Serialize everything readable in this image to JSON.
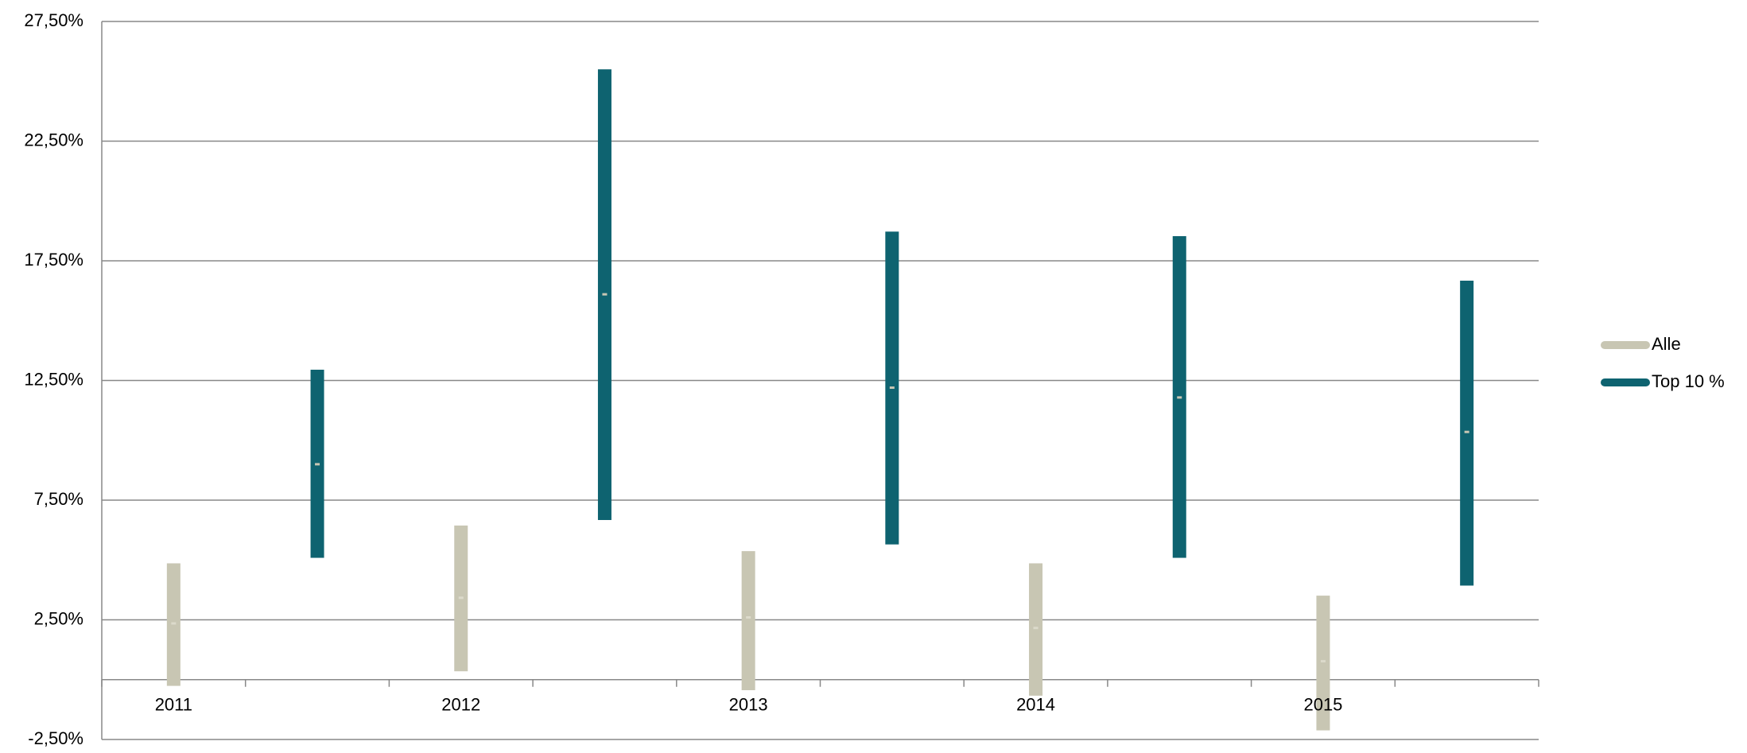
{
  "chart_data": {
    "type": "range-bar",
    "categories": [
      "2011",
      "2012",
      "2013",
      "2014",
      "2015"
    ],
    "series": [
      {
        "name": "Alle",
        "color": "#c8c6b3",
        "high": [
          4.86,
          6.44,
          5.37,
          4.86,
          3.51
        ],
        "low": [
          -0.26,
          0.35,
          -0.44,
          -0.67,
          -2.12
        ],
        "mid": [
          2.35,
          3.42,
          2.6,
          2.16,
          0.77
        ]
      },
      {
        "name": "Top 10 %",
        "color": "#0e6370",
        "high": [
          12.95,
          25.5,
          18.72,
          18.53,
          16.67
        ],
        "low": [
          5.09,
          6.67,
          5.65,
          5.09,
          3.93
        ],
        "mid": [
          9.0,
          16.1,
          12.2,
          11.79,
          10.35
        ]
      }
    ],
    "ylim": [
      -2.5,
      27.5
    ],
    "yticks": [
      {
        "value": -2.5,
        "label": "-2,50%"
      },
      {
        "value": 2.5,
        "label": "2,50%"
      },
      {
        "value": 7.5,
        "label": "7,50%"
      },
      {
        "value": 12.5,
        "label": "12,50%"
      },
      {
        "value": 17.5,
        "label": "17,50%"
      },
      {
        "value": 22.5,
        "label": "22,50%"
      },
      {
        "value": 27.5,
        "label": "27,50%"
      }
    ],
    "grid": true,
    "legend": "right"
  }
}
